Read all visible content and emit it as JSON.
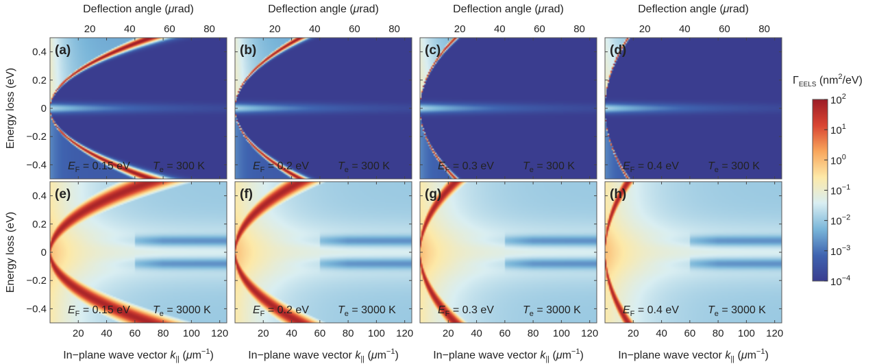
{
  "chart_data": {
    "type": "heatmap",
    "figure_kind": "multi-panel EELS heatmap grid",
    "xlabel_bottom_prefix": "In−plane wave vector ",
    "xlabel_bottom_var": "k",
    "xlabel_bottom_sub": "||",
    "xlabel_bottom_unit_open": " (",
    "xlabel_bottom_unit_mu": "μ",
    "xlabel_bottom_unit": "m",
    "xlabel_bottom_unit_sup": "−1",
    "xlabel_bottom_unit_close": ")",
    "xlabel_top": "Deflection angle (",
    "xlabel_top_mu": "μ",
    "xlabel_top_unit": "rad)",
    "ylabel": "Energy loss (eV)",
    "x_range": [
      0,
      125
    ],
    "x_ticks": [
      "20",
      "40",
      "60",
      "80",
      "100",
      "120"
    ],
    "x_tick_values": [
      20,
      40,
      60,
      80,
      100,
      120
    ],
    "top_range": [
      0,
      88.75
    ],
    "top_ticks": [
      "20",
      "40",
      "60",
      "80"
    ],
    "top_tick_values": [
      20,
      40,
      60,
      80
    ],
    "y_range": [
      -0.5,
      0.5
    ],
    "y_ticks": [
      "0.4",
      "0.2",
      "0",
      "−0.2",
      "−0.4"
    ],
    "y_tick_values": [
      0.4,
      0.2,
      0,
      -0.2,
      -0.4
    ],
    "colorbar": {
      "title_main": "Γ",
      "title_sub": "EELS",
      "title_unit": " (nm",
      "title_unit_sup": "2",
      "title_unit_end": "/eV)",
      "scale": "log",
      "ticks": [
        {
          "base": "10",
          "exp": "2"
        },
        {
          "base": "10",
          "exp": "1"
        },
        {
          "base": "10",
          "exp": "0"
        },
        {
          "base": "10",
          "exp": "−1"
        },
        {
          "base": "10",
          "exp": "−2"
        },
        {
          "base": "10",
          "exp": "−3"
        },
        {
          "base": "10",
          "exp": "−4"
        }
      ],
      "range_log10": [
        -4,
        2
      ],
      "colors": [
        "#3a3d8f",
        "#3f64b0",
        "#7ab6d9",
        "#d9eef2",
        "#fde9a8",
        "#f8a65c",
        "#d94532",
        "#9c1c26"
      ]
    },
    "ef_label": "E",
    "ef_sub": "F",
    "te_label": "T",
    "te_sub": "e",
    "panels": [
      {
        "label": "(a)",
        "ef": "0.15 eV",
        "te": "300 K",
        "ef_value": 0.15,
        "te_value": 300
      },
      {
        "label": "(b)",
        "ef": "0.2 eV",
        "te": "300 K",
        "ef_value": 0.2,
        "te_value": 300
      },
      {
        "label": "(c)",
        "ef": "0.3 eV",
        "te": "300 K",
        "ef_value": 0.3,
        "te_value": 300
      },
      {
        "label": "(d)",
        "ef": "0.4 eV",
        "te": "300 K",
        "ef_value": 0.4,
        "te_value": 300
      },
      {
        "label": "(e)",
        "ef": "0.15 eV",
        "te": "3000 K",
        "ef_value": 0.15,
        "te_value": 3000
      },
      {
        "label": "(f)",
        "ef": "0.2 eV",
        "te": "3000 K",
        "ef_value": 0.2,
        "te_value": 3000
      },
      {
        "label": "(g)",
        "ef": "0.3 eV",
        "te": "3000 K",
        "ef_value": 0.3,
        "te_value": 3000
      },
      {
        "label": "(h)",
        "ef": "0.4 eV",
        "te": "3000 K",
        "ef_value": 0.4,
        "te_value": 3000
      }
    ]
  }
}
